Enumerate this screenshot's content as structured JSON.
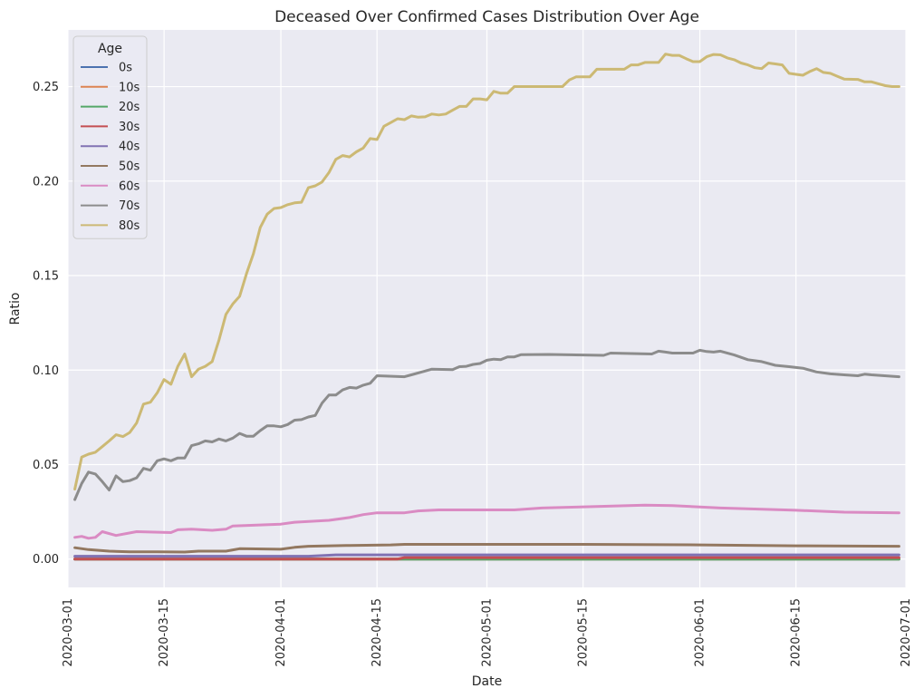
{
  "chart_data": {
    "type": "line",
    "title": "Deceased Over Confirmed Cases Distribution Over Age",
    "xlabel": "Date",
    "ylabel": "Ratio",
    "grid": true,
    "legend_title": "Age",
    "legend_placement": "top-left",
    "xlim": [
      "2020-03-01",
      "2020-07-01"
    ],
    "ylim": [
      -0.015,
      0.28
    ],
    "xticks": [
      "2020-03-01",
      "2020-03-15",
      "2020-04-01",
      "2020-04-15",
      "2020-05-01",
      "2020-05-15",
      "2020-06-01",
      "2020-06-15",
      "2020-07-01"
    ],
    "yticks": [
      0.0,
      0.05,
      0.1,
      0.15,
      0.2,
      0.25
    ],
    "ytick_labels": [
      "0.00",
      "0.05",
      "0.10",
      "0.15",
      "0.20",
      "0.25"
    ],
    "series": [
      {
        "name": "0s",
        "color": "#4c72b0",
        "points": [
          [
            "2020-03-02",
            0.0
          ],
          [
            "2020-06-30",
            0.0
          ]
        ]
      },
      {
        "name": "10s",
        "color": "#dd8452",
        "points": [
          [
            "2020-03-02",
            0.0
          ],
          [
            "2020-06-30",
            0.0
          ]
        ]
      },
      {
        "name": "20s",
        "color": "#55a868",
        "points": [
          [
            "2020-03-02",
            0.0
          ],
          [
            "2020-06-30",
            0.0
          ]
        ]
      },
      {
        "name": "30s",
        "color": "#c44e52",
        "points": [
          [
            "2020-03-02",
            0.0
          ],
          [
            "2020-04-18",
            0.0
          ],
          [
            "2020-04-19",
            0.0008
          ],
          [
            "2020-06-30",
            0.0008
          ]
        ]
      },
      {
        "name": "40s",
        "color": "#8172b3",
        "points": [
          [
            "2020-03-02",
            0.0015
          ],
          [
            "2020-04-05",
            0.0015
          ],
          [
            "2020-04-09",
            0.0022
          ],
          [
            "2020-06-30",
            0.0022
          ]
        ]
      },
      {
        "name": "50s",
        "color": "#937860",
        "points": [
          [
            "2020-03-02",
            0.006
          ],
          [
            "2020-03-04",
            0.005
          ],
          [
            "2020-03-07",
            0.0042
          ],
          [
            "2020-03-10",
            0.0038
          ],
          [
            "2020-03-14",
            0.0038
          ],
          [
            "2020-03-18",
            0.0037
          ],
          [
            "2020-03-20",
            0.0042
          ],
          [
            "2020-03-24",
            0.0042
          ],
          [
            "2020-03-26",
            0.0055
          ],
          [
            "2020-04-01",
            0.0052
          ],
          [
            "2020-04-03",
            0.0062
          ],
          [
            "2020-04-05",
            0.0068
          ],
          [
            "2020-04-11",
            0.0072
          ],
          [
            "2020-04-17",
            0.0075
          ],
          [
            "2020-04-19",
            0.0078
          ],
          [
            "2020-05-15",
            0.0078
          ],
          [
            "2020-06-01",
            0.0075
          ],
          [
            "2020-06-15",
            0.007
          ],
          [
            "2020-06-30",
            0.0068
          ]
        ]
      },
      {
        "name": "60s",
        "color": "#da8bc3",
        "points": [
          [
            "2020-03-02",
            0.0115
          ],
          [
            "2020-03-03",
            0.012
          ],
          [
            "2020-03-04",
            0.011
          ],
          [
            "2020-03-05",
            0.0115
          ],
          [
            "2020-03-06",
            0.0145
          ],
          [
            "2020-03-08",
            0.0125
          ],
          [
            "2020-03-11",
            0.0145
          ],
          [
            "2020-03-16",
            0.014
          ],
          [
            "2020-03-17",
            0.0155
          ],
          [
            "2020-03-19",
            0.0158
          ],
          [
            "2020-03-22",
            0.0152
          ],
          [
            "2020-03-24",
            0.0158
          ],
          [
            "2020-03-25",
            0.0175
          ],
          [
            "2020-04-01",
            0.0185
          ],
          [
            "2020-04-03",
            0.0195
          ],
          [
            "2020-04-08",
            0.0205
          ],
          [
            "2020-04-11",
            0.022
          ],
          [
            "2020-04-13",
            0.0235
          ],
          [
            "2020-04-15",
            0.0245
          ],
          [
            "2020-04-19",
            0.0245
          ],
          [
            "2020-04-21",
            0.0255
          ],
          [
            "2020-04-24",
            0.026
          ],
          [
            "2020-05-05",
            0.026
          ],
          [
            "2020-05-09",
            0.027
          ],
          [
            "2020-05-14",
            0.0275
          ],
          [
            "2020-05-24",
            0.0285
          ],
          [
            "2020-05-28",
            0.0283
          ],
          [
            "2020-06-04",
            0.027
          ],
          [
            "2020-06-15",
            0.0258
          ],
          [
            "2020-06-22",
            0.0248
          ],
          [
            "2020-06-30",
            0.0245
          ]
        ]
      },
      {
        "name": "70s",
        "color": "#8c8c8c",
        "points": [
          [
            "2020-03-02",
            0.0315
          ],
          [
            "2020-03-03",
            0.04
          ],
          [
            "2020-03-04",
            0.046
          ],
          [
            "2020-03-05",
            0.045
          ],
          [
            "2020-03-06",
            0.041
          ],
          [
            "2020-03-07",
            0.0365
          ],
          [
            "2020-03-08",
            0.044
          ],
          [
            "2020-03-09",
            0.041
          ],
          [
            "2020-03-10",
            0.0415
          ],
          [
            "2020-03-11",
            0.043
          ],
          [
            "2020-03-12",
            0.048
          ],
          [
            "2020-03-13",
            0.047
          ],
          [
            "2020-03-14",
            0.052
          ],
          [
            "2020-03-15",
            0.053
          ],
          [
            "2020-03-16",
            0.052
          ],
          [
            "2020-03-17",
            0.0535
          ],
          [
            "2020-03-18",
            0.0535
          ],
          [
            "2020-03-19",
            0.06
          ],
          [
            "2020-03-20",
            0.061
          ],
          [
            "2020-03-21",
            0.0625
          ],
          [
            "2020-03-22",
            0.062
          ],
          [
            "2020-03-23",
            0.0635
          ],
          [
            "2020-03-24",
            0.0625
          ],
          [
            "2020-03-25",
            0.064
          ],
          [
            "2020-03-26",
            0.0665
          ],
          [
            "2020-03-27",
            0.065
          ],
          [
            "2020-03-28",
            0.065
          ],
          [
            "2020-03-29",
            0.068
          ],
          [
            "2020-03-30",
            0.0705
          ],
          [
            "2020-03-31",
            0.0705
          ],
          [
            "2020-04-01",
            0.07
          ],
          [
            "2020-04-02",
            0.0712
          ],
          [
            "2020-04-03",
            0.0735
          ],
          [
            "2020-04-04",
            0.0738
          ],
          [
            "2020-04-05",
            0.0752
          ],
          [
            "2020-04-06",
            0.076
          ],
          [
            "2020-04-07",
            0.0825
          ],
          [
            "2020-04-08",
            0.0868
          ],
          [
            "2020-04-09",
            0.0868
          ],
          [
            "2020-04-10",
            0.0895
          ],
          [
            "2020-04-11",
            0.0908
          ],
          [
            "2020-04-12",
            0.0905
          ],
          [
            "2020-04-13",
            0.092
          ],
          [
            "2020-04-14",
            0.093
          ],
          [
            "2020-04-15",
            0.097
          ],
          [
            "2020-04-19",
            0.0965
          ],
          [
            "2020-04-20",
            0.0975
          ],
          [
            "2020-04-22",
            0.0995
          ],
          [
            "2020-04-23",
            0.1005
          ],
          [
            "2020-04-26",
            0.1002
          ],
          [
            "2020-04-27",
            0.1018
          ],
          [
            "2020-04-28",
            0.102
          ],
          [
            "2020-04-29",
            0.103
          ],
          [
            "2020-04-30",
            0.1035
          ],
          [
            "2020-05-01",
            0.1052
          ],
          [
            "2020-05-02",
            0.1058
          ],
          [
            "2020-05-03",
            0.1055
          ],
          [
            "2020-05-04",
            0.107
          ],
          [
            "2020-05-05",
            0.107
          ],
          [
            "2020-05-06",
            0.1082
          ],
          [
            "2020-05-10",
            0.1083
          ],
          [
            "2020-05-15",
            0.108
          ],
          [
            "2020-05-18",
            0.1078
          ],
          [
            "2020-05-19",
            0.109
          ],
          [
            "2020-05-25",
            0.1085
          ],
          [
            "2020-05-26",
            0.11
          ],
          [
            "2020-05-27",
            0.1095
          ],
          [
            "2020-05-28",
            0.109
          ],
          [
            "2020-05-31",
            0.109
          ],
          [
            "2020-06-01",
            0.1105
          ],
          [
            "2020-06-02",
            0.1098
          ],
          [
            "2020-06-03",
            0.1095
          ],
          [
            "2020-06-04",
            0.11
          ],
          [
            "2020-06-06",
            0.108
          ],
          [
            "2020-06-08",
            0.1055
          ],
          [
            "2020-06-10",
            0.1045
          ],
          [
            "2020-06-12",
            0.1025
          ],
          [
            "2020-06-14",
            0.1018
          ],
          [
            "2020-06-16",
            0.101
          ],
          [
            "2020-06-18",
            0.099
          ],
          [
            "2020-06-20",
            0.098
          ],
          [
            "2020-06-22",
            0.0975
          ],
          [
            "2020-06-24",
            0.097
          ],
          [
            "2020-06-25",
            0.0978
          ],
          [
            "2020-06-26",
            0.0975
          ],
          [
            "2020-06-30",
            0.0965
          ]
        ]
      },
      {
        "name": "80s",
        "color": "#ccb974",
        "points": [
          [
            "2020-03-02",
            0.037
          ],
          [
            "2020-03-03",
            0.054
          ],
          [
            "2020-03-04",
            0.0555
          ],
          [
            "2020-03-05",
            0.0565
          ],
          [
            "2020-03-06",
            0.0595
          ],
          [
            "2020-03-07",
            0.0625
          ],
          [
            "2020-03-08",
            0.0658
          ],
          [
            "2020-03-09",
            0.0648
          ],
          [
            "2020-03-10",
            0.067
          ],
          [
            "2020-03-11",
            0.072
          ],
          [
            "2020-03-12",
            0.082
          ],
          [
            "2020-03-13",
            0.083
          ],
          [
            "2020-03-14",
            0.088
          ],
          [
            "2020-03-15",
            0.095
          ],
          [
            "2020-03-16",
            0.0925
          ],
          [
            "2020-03-17",
            0.102
          ],
          [
            "2020-03-18",
            0.1085
          ],
          [
            "2020-03-19",
            0.0965
          ],
          [
            "2020-03-20",
            0.1005
          ],
          [
            "2020-03-21",
            0.102
          ],
          [
            "2020-03-22",
            0.1045
          ],
          [
            "2020-03-23",
            0.116
          ],
          [
            "2020-03-24",
            0.1295
          ],
          [
            "2020-03-25",
            0.135
          ],
          [
            "2020-03-26",
            0.139
          ],
          [
            "2020-03-27",
            0.151
          ],
          [
            "2020-03-28",
            0.1615
          ],
          [
            "2020-03-29",
            0.1755
          ],
          [
            "2020-03-30",
            0.1825
          ],
          [
            "2020-03-31",
            0.1855
          ],
          [
            "2020-04-01",
            0.186
          ],
          [
            "2020-04-02",
            0.1875
          ],
          [
            "2020-04-03",
            0.1885
          ],
          [
            "2020-04-04",
            0.1888
          ],
          [
            "2020-04-05",
            0.1965
          ],
          [
            "2020-04-06",
            0.1975
          ],
          [
            "2020-04-07",
            0.1995
          ],
          [
            "2020-04-08",
            0.2045
          ],
          [
            "2020-04-09",
            0.2115
          ],
          [
            "2020-04-10",
            0.2135
          ],
          [
            "2020-04-11",
            0.2128
          ],
          [
            "2020-04-12",
            0.2155
          ],
          [
            "2020-04-13",
            0.2175
          ],
          [
            "2020-04-14",
            0.2225
          ],
          [
            "2020-04-15",
            0.222
          ],
          [
            "2020-04-16",
            0.229
          ],
          [
            "2020-04-17",
            0.231
          ],
          [
            "2020-04-18",
            0.233
          ],
          [
            "2020-04-19",
            0.2325
          ],
          [
            "2020-04-20",
            0.2345
          ],
          [
            "2020-04-21",
            0.2338
          ],
          [
            "2020-04-22",
            0.234
          ],
          [
            "2020-04-23",
            0.2355
          ],
          [
            "2020-04-24",
            0.235
          ],
          [
            "2020-04-25",
            0.2355
          ],
          [
            "2020-04-26",
            0.2375
          ],
          [
            "2020-04-27",
            0.2395
          ],
          [
            "2020-04-28",
            0.2395
          ],
          [
            "2020-04-29",
            0.2435
          ],
          [
            "2020-04-30",
            0.2435
          ],
          [
            "2020-05-01",
            0.243
          ],
          [
            "2020-05-02",
            0.2475
          ],
          [
            "2020-05-03",
            0.2465
          ],
          [
            "2020-05-04",
            0.2465
          ],
          [
            "2020-05-05",
            0.25
          ],
          [
            "2020-05-12",
            0.25
          ],
          [
            "2020-05-13",
            0.2535
          ],
          [
            "2020-05-14",
            0.2552
          ],
          [
            "2020-05-16",
            0.2552
          ],
          [
            "2020-05-17",
            0.2592
          ],
          [
            "2020-05-21",
            0.2592
          ],
          [
            "2020-05-22",
            0.2615
          ],
          [
            "2020-05-23",
            0.2615
          ],
          [
            "2020-05-24",
            0.2628
          ],
          [
            "2020-05-26",
            0.2628
          ],
          [
            "2020-05-27",
            0.2672
          ],
          [
            "2020-05-28",
            0.2665
          ],
          [
            "2020-05-29",
            0.2665
          ],
          [
            "2020-05-30",
            0.2648
          ],
          [
            "2020-05-31",
            0.2632
          ],
          [
            "2020-06-01",
            0.2632
          ],
          [
            "2020-06-02",
            0.2658
          ],
          [
            "2020-06-03",
            0.267
          ],
          [
            "2020-06-04",
            0.2668
          ],
          [
            "2020-06-05",
            0.2652
          ],
          [
            "2020-06-06",
            0.2642
          ],
          [
            "2020-06-07",
            0.2625
          ],
          [
            "2020-06-08",
            0.2615
          ],
          [
            "2020-06-09",
            0.26
          ],
          [
            "2020-06-10",
            0.2595
          ],
          [
            "2020-06-11",
            0.2625
          ],
          [
            "2020-06-12",
            0.262
          ],
          [
            "2020-06-13",
            0.2615
          ],
          [
            "2020-06-14",
            0.257
          ],
          [
            "2020-06-15",
            0.2565
          ],
          [
            "2020-06-16",
            0.256
          ],
          [
            "2020-06-17",
            0.258
          ],
          [
            "2020-06-18",
            0.2595
          ],
          [
            "2020-06-19",
            0.2575
          ],
          [
            "2020-06-20",
            0.257
          ],
          [
            "2020-06-21",
            0.2555
          ],
          [
            "2020-06-22",
            0.254
          ],
          [
            "2020-06-24",
            0.2538
          ],
          [
            "2020-06-25",
            0.2525
          ],
          [
            "2020-06-26",
            0.2525
          ],
          [
            "2020-06-27",
            0.2515
          ],
          [
            "2020-06-28",
            0.2505
          ],
          [
            "2020-06-29",
            0.25
          ],
          [
            "2020-06-30",
            0.25
          ]
        ]
      }
    ]
  }
}
